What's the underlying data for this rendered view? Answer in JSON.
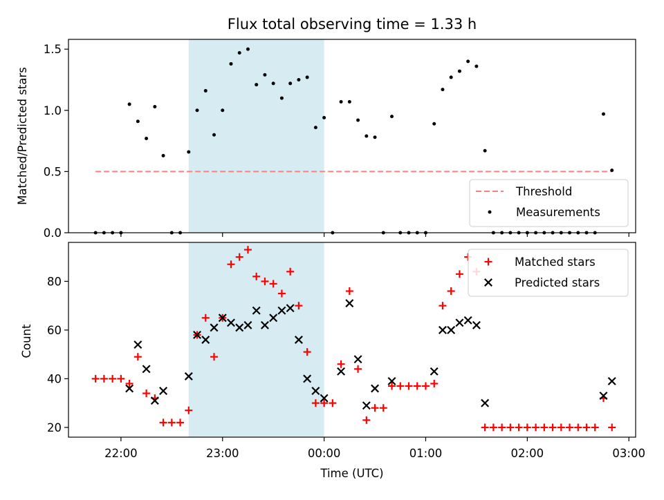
{
  "chart_data": [
    {
      "type": "scatter",
      "title": "Flux total observing time = 1.33 h",
      "xlabel": "",
      "ylabel": "Matched/Predicted stars",
      "ylim": [
        0,
        1.58
      ],
      "yticks": [
        "0.0",
        "0.5",
        "1.0",
        "1.5"
      ],
      "shaded_span": [
        "22:40",
        "00:00"
      ],
      "shade_color": "#add8e6",
      "legend_position": "lower right",
      "threshold": {
        "name": "Threshold",
        "value": 0.5,
        "x_range": [
          "21:45",
          "02:50"
        ],
        "color": "#ff7f7f",
        "style": "dashed"
      },
      "series": [
        {
          "name": "Measurements",
          "color": "#000000",
          "marker": "dot",
          "points": [
            [
              "21:45",
              0
            ],
            [
              "21:50",
              0
            ],
            [
              "21:55",
              0
            ],
            [
              "22:00",
              0
            ],
            [
              "22:05",
              1.05
            ],
            [
              "22:10",
              0.91
            ],
            [
              "22:15",
              0.77
            ],
            [
              "22:20",
              1.03
            ],
            [
              "22:25",
              0.63
            ],
            [
              "22:30",
              0
            ],
            [
              "22:35",
              0
            ],
            [
              "22:40",
              0.66
            ],
            [
              "22:45",
              1.0
            ],
            [
              "22:50",
              1.16
            ],
            [
              "22:55",
              0.8
            ],
            [
              "23:00",
              1.0
            ],
            [
              "23:05",
              1.38
            ],
            [
              "23:10",
              1.47
            ],
            [
              "23:15",
              1.5
            ],
            [
              "23:20",
              1.21
            ],
            [
              "23:25",
              1.29
            ],
            [
              "23:30",
              1.22
            ],
            [
              "23:35",
              1.1
            ],
            [
              "23:40",
              1.22
            ],
            [
              "23:45",
              1.25
            ],
            [
              "23:50",
              1.27
            ],
            [
              "23:55",
              0.86
            ],
            [
              "00:00",
              0.94
            ],
            [
              "00:05",
              0
            ],
            [
              "00:10",
              1.07
            ],
            [
              "00:15",
              1.07
            ],
            [
              "00:20",
              0.92
            ],
            [
              "00:25",
              0.79
            ],
            [
              "00:30",
              0.78
            ],
            [
              "00:35",
              0
            ],
            [
              "00:40",
              0.95
            ],
            [
              "00:45",
              0
            ],
            [
              "00:50",
              0
            ],
            [
              "00:55",
              0
            ],
            [
              "01:00",
              0
            ],
            [
              "01:05",
              0.89
            ],
            [
              "01:10",
              1.17
            ],
            [
              "01:15",
              1.27
            ],
            [
              "01:20",
              1.32
            ],
            [
              "01:25",
              1.4
            ],
            [
              "01:30",
              1.36
            ],
            [
              "01:35",
              0.67
            ],
            [
              "01:40",
              0
            ],
            [
              "01:45",
              0
            ],
            [
              "01:50",
              0
            ],
            [
              "01:55",
              0
            ],
            [
              "02:00",
              0
            ],
            [
              "02:05",
              0
            ],
            [
              "02:10",
              0
            ],
            [
              "02:15",
              0
            ],
            [
              "02:20",
              0
            ],
            [
              "02:25",
              0
            ],
            [
              "02:30",
              0
            ],
            [
              "02:35",
              0
            ],
            [
              "02:40",
              0
            ],
            [
              "02:45",
              0.97
            ],
            [
              "02:50",
              0.51
            ]
          ]
        }
      ]
    },
    {
      "type": "scatter",
      "title": "",
      "xlabel": "Time (UTC)",
      "ylabel": "Count",
      "ylim": [
        16,
        96
      ],
      "yticks": [
        "20",
        "40",
        "60",
        "80"
      ],
      "xlim": [
        "21:29",
        "03:04"
      ],
      "xticks": [
        "22:00",
        "23:00",
        "00:00",
        "01:00",
        "02:00",
        "03:00"
      ],
      "shaded_span": [
        "22:40",
        "00:00"
      ],
      "shade_color": "#add8e6",
      "legend_position": "upper right",
      "series": [
        {
          "name": "Matched stars",
          "color": "#ff0000",
          "marker": "plus",
          "points": [
            [
              "21:45",
              40
            ],
            [
              "21:50",
              40
            ],
            [
              "21:55",
              40
            ],
            [
              "22:00",
              40
            ],
            [
              "22:05",
              38
            ],
            [
              "22:10",
              49
            ],
            [
              "22:15",
              34
            ],
            [
              "22:20",
              32
            ],
            [
              "22:25",
              22
            ],
            [
              "22:30",
              22
            ],
            [
              "22:35",
              22
            ],
            [
              "22:40",
              27
            ],
            [
              "22:45",
              58
            ],
            [
              "22:50",
              65
            ],
            [
              "22:55",
              49
            ],
            [
              "23:00",
              65
            ],
            [
              "23:05",
              87
            ],
            [
              "23:10",
              90
            ],
            [
              "23:15",
              93
            ],
            [
              "23:20",
              82
            ],
            [
              "23:25",
              80
            ],
            [
              "23:30",
              79
            ],
            [
              "23:35",
              75
            ],
            [
              "23:40",
              84
            ],
            [
              "23:45",
              70
            ],
            [
              "23:50",
              51
            ],
            [
              "23:55",
              30
            ],
            [
              "00:00",
              30
            ],
            [
              "00:05",
              30
            ],
            [
              "00:10",
              46
            ],
            [
              "00:15",
              76
            ],
            [
              "00:20",
              44
            ],
            [
              "00:25",
              23
            ],
            [
              "00:30",
              28
            ],
            [
              "00:35",
              28
            ],
            [
              "00:40",
              37
            ],
            [
              "00:45",
              37
            ],
            [
              "00:50",
              37
            ],
            [
              "00:55",
              37
            ],
            [
              "01:00",
              37
            ],
            [
              "01:05",
              38
            ],
            [
              "01:10",
              70
            ],
            [
              "01:15",
              76
            ],
            [
              "01:20",
              83
            ],
            [
              "01:25",
              90
            ],
            [
              "01:30",
              84
            ],
            [
              "01:35",
              20
            ],
            [
              "01:40",
              20
            ],
            [
              "01:45",
              20
            ],
            [
              "01:50",
              20
            ],
            [
              "01:55",
              20
            ],
            [
              "02:00",
              20
            ],
            [
              "02:05",
              20
            ],
            [
              "02:10",
              20
            ],
            [
              "02:15",
              20
            ],
            [
              "02:20",
              20
            ],
            [
              "02:25",
              20
            ],
            [
              "02:30",
              20
            ],
            [
              "02:35",
              20
            ],
            [
              "02:40",
              20
            ],
            [
              "02:45",
              32
            ],
            [
              "02:50",
              20
            ]
          ]
        },
        {
          "name": "Predicted stars",
          "color": "#000000",
          "marker": "x",
          "points": [
            [
              "22:05",
              36
            ],
            [
              "22:10",
              54
            ],
            [
              "22:15",
              44
            ],
            [
              "22:20",
              31
            ],
            [
              "22:25",
              35
            ],
            [
              "22:40",
              41
            ],
            [
              "22:45",
              58
            ],
            [
              "22:50",
              56
            ],
            [
              "22:55",
              61
            ],
            [
              "23:00",
              65
            ],
            [
              "23:05",
              63
            ],
            [
              "23:10",
              61
            ],
            [
              "23:15",
              62
            ],
            [
              "23:20",
              68
            ],
            [
              "23:25",
              62
            ],
            [
              "23:30",
              65
            ],
            [
              "23:35",
              68
            ],
            [
              "23:40",
              69
            ],
            [
              "23:45",
              56
            ],
            [
              "23:50",
              40
            ],
            [
              "23:55",
              35
            ],
            [
              "00:00",
              32
            ],
            [
              "00:10",
              43
            ],
            [
              "00:15",
              71
            ],
            [
              "00:20",
              48
            ],
            [
              "00:25",
              29
            ],
            [
              "00:30",
              36
            ],
            [
              "00:40",
              39
            ],
            [
              "01:05",
              43
            ],
            [
              "01:10",
              60
            ],
            [
              "01:15",
              60
            ],
            [
              "01:20",
              63
            ],
            [
              "01:25",
              64
            ],
            [
              "01:30",
              62
            ],
            [
              "01:35",
              30
            ],
            [
              "02:45",
              33
            ],
            [
              "02:50",
              39
            ]
          ]
        }
      ]
    }
  ]
}
